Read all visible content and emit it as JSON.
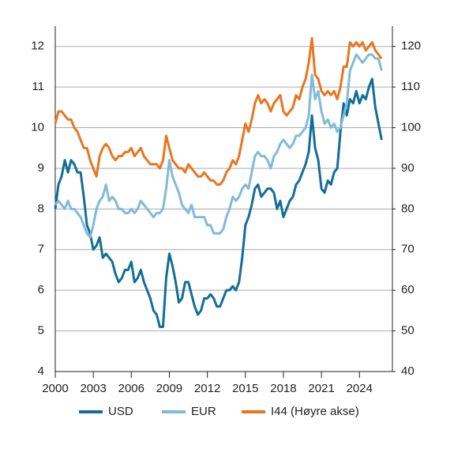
{
  "chart_data": {
    "type": "line",
    "x": [
      2000,
      2000.25,
      2000.5,
      2000.75,
      2001,
      2001.25,
      2001.5,
      2001.75,
      2002,
      2002.25,
      2002.5,
      2002.75,
      2003,
      2003.25,
      2003.5,
      2003.75,
      2004,
      2004.25,
      2004.5,
      2004.75,
      2005,
      2005.25,
      2005.5,
      2005.75,
      2006,
      2006.25,
      2006.5,
      2006.75,
      2007,
      2007.25,
      2007.5,
      2007.75,
      2008,
      2008.25,
      2008.5,
      2008.75,
      2009,
      2009.25,
      2009.5,
      2009.75,
      2010,
      2010.25,
      2010.5,
      2010.75,
      2011,
      2011.25,
      2011.5,
      2011.75,
      2012,
      2012.25,
      2012.5,
      2012.75,
      2013,
      2013.25,
      2013.5,
      2013.75,
      2014,
      2014.25,
      2014.5,
      2014.75,
      2015,
      2015.25,
      2015.5,
      2015.75,
      2016,
      2016.25,
      2016.5,
      2016.75,
      2017,
      2017.25,
      2017.5,
      2017.75,
      2018,
      2018.25,
      2018.5,
      2018.75,
      2019,
      2019.25,
      2019.5,
      2019.75,
      2020,
      2020.25,
      2020.5,
      2020.75,
      2021,
      2021.25,
      2021.5,
      2021.75,
      2022,
      2022.25,
      2022.5,
      2022.75,
      2023,
      2023.25,
      2023.5,
      2023.75,
      2024,
      2024.25,
      2024.5,
      2024.75,
      2025,
      2025.25,
      2025.5,
      2025.75
    ],
    "series": [
      {
        "name": "USD",
        "color": "#136e97",
        "axis": "y",
        "values": [
          8.0,
          8.6,
          8.8,
          9.2,
          8.9,
          9.2,
          9.1,
          8.9,
          8.9,
          8.3,
          7.6,
          7.4,
          7.0,
          7.1,
          7.3,
          6.8,
          6.9,
          6.8,
          6.7,
          6.4,
          6.2,
          6.3,
          6.5,
          6.5,
          6.7,
          6.2,
          6.3,
          6.5,
          6.2,
          6.0,
          5.8,
          5.5,
          5.4,
          5.1,
          5.1,
          6.3,
          6.9,
          6.6,
          6.2,
          5.7,
          5.8,
          6.2,
          6.2,
          5.9,
          5.6,
          5.4,
          5.5,
          5.8,
          5.8,
          5.9,
          5.8,
          5.6,
          5.6,
          5.8,
          6.0,
          6.0,
          6.1,
          6.0,
          6.2,
          6.8,
          7.6,
          7.8,
          8.1,
          8.5,
          8.6,
          8.3,
          8.4,
          8.5,
          8.5,
          8.4,
          8.0,
          8.2,
          7.8,
          8.0,
          8.2,
          8.3,
          8.6,
          8.7,
          8.9,
          9.1,
          9.4,
          10.3,
          9.5,
          9.2,
          8.5,
          8.4,
          8.7,
          8.6,
          8.9,
          9.0,
          9.9,
          10.6,
          10.3,
          10.7,
          10.6,
          10.9,
          10.6,
          10.8,
          10.7,
          11.0,
          11.2,
          10.5,
          10.1,
          9.7
        ]
      },
      {
        "name": "EUR",
        "color": "#80bbd9",
        "axis": "y",
        "values": [
          8.1,
          8.2,
          8.1,
          8.0,
          8.2,
          8.0,
          8.0,
          7.9,
          7.8,
          7.6,
          7.4,
          7.3,
          7.6,
          8.0,
          8.2,
          8.3,
          8.6,
          8.2,
          8.3,
          8.2,
          8.0,
          8.0,
          7.9,
          7.9,
          8.0,
          7.9,
          8.0,
          8.2,
          8.1,
          8.0,
          7.9,
          7.8,
          7.9,
          7.9,
          8.0,
          8.5,
          9.2,
          8.8,
          8.6,
          8.4,
          8.1,
          8.0,
          7.9,
          8.1,
          7.8,
          7.8,
          7.8,
          7.8,
          7.6,
          7.6,
          7.4,
          7.4,
          7.4,
          7.5,
          7.8,
          8.0,
          8.3,
          8.2,
          8.3,
          8.5,
          8.6,
          8.5,
          8.9,
          9.3,
          9.4,
          9.3,
          9.3,
          9.2,
          9.0,
          9.3,
          9.4,
          9.6,
          9.7,
          9.6,
          9.5,
          9.6,
          9.8,
          9.8,
          9.9,
          10.0,
          10.3,
          11.3,
          10.7,
          10.9,
          10.4,
          10.1,
          10.2,
          10.0,
          10.1,
          9.9,
          10.0,
          10.3,
          10.6,
          11.4,
          11.6,
          11.8,
          11.7,
          11.6,
          11.7,
          11.8,
          11.8,
          11.7,
          11.7,
          11.4
        ]
      },
      {
        "name": "I44 (Høyre akse)",
        "color": "#e8761e",
        "axis": "y2",
        "values": [
          101,
          104,
          104,
          103,
          102,
          102,
          100,
          99,
          97,
          95,
          95,
          92,
          90,
          88,
          93,
          95,
          96,
          95,
          93,
          92,
          93,
          93,
          94,
          94,
          95,
          93,
          94,
          95,
          93,
          92,
          91,
          91,
          91,
          90,
          92,
          98,
          95,
          92,
          91,
          90,
          90,
          89,
          91,
          90,
          89,
          88,
          88,
          89,
          88,
          87,
          87,
          86,
          86,
          87,
          89,
          90,
          92,
          91,
          93,
          97,
          101,
          99,
          102,
          106,
          108,
          106,
          107,
          106,
          104,
          106,
          107,
          108,
          104,
          103,
          104,
          105,
          108,
          107,
          110,
          112,
          116,
          122,
          113,
          112,
          109,
          108,
          109,
          108,
          109,
          107,
          110,
          115,
          115,
          121,
          120,
          121,
          120,
          121,
          119,
          120,
          121,
          119,
          118,
          117
        ]
      }
    ],
    "xlim": [
      2000,
      2026.6
    ],
    "xticks": [
      2000,
      2003,
      2006,
      2009,
      2012,
      2015,
      2018,
      2021,
      2024
    ],
    "ylim": [
      4,
      12.5
    ],
    "yticks": [
      4,
      5,
      6,
      7,
      8,
      9,
      10,
      11,
      12
    ],
    "y2lim": [
      40,
      125
    ],
    "y2ticks": [
      40,
      50,
      60,
      70,
      80,
      90,
      100,
      110,
      120
    ],
    "grid": true,
    "legend": "bottom"
  }
}
